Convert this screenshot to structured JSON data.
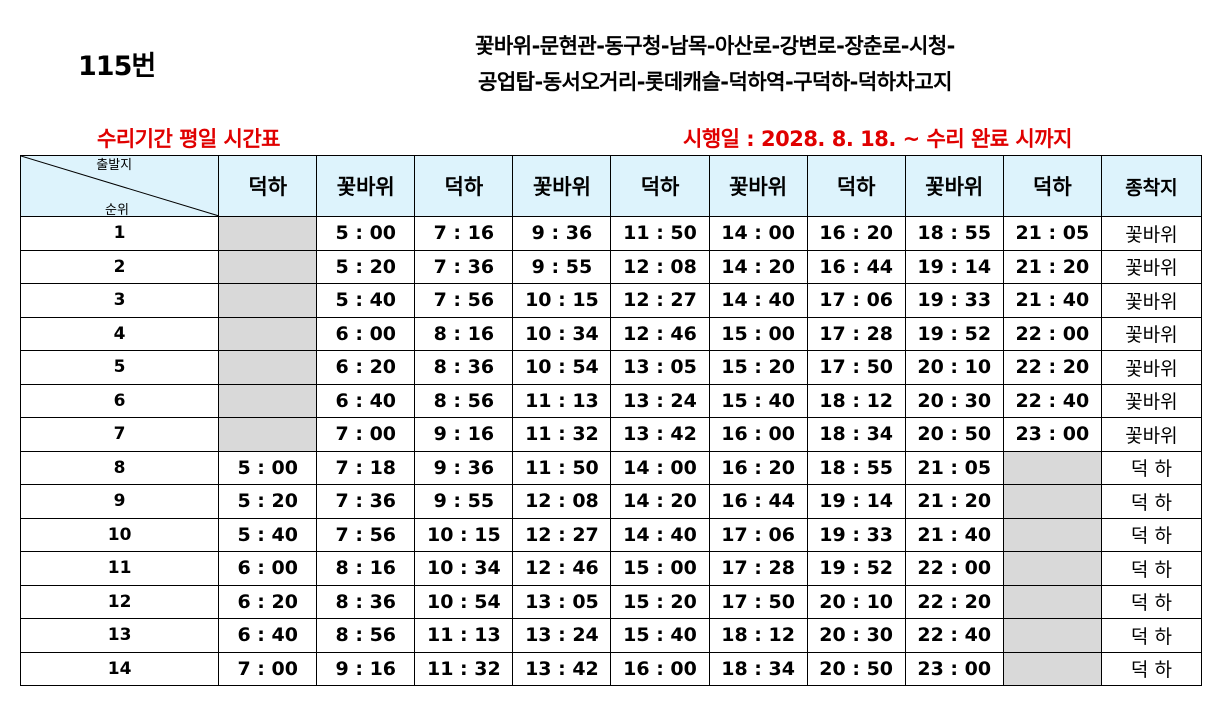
{
  "header": {
    "route_number": "115번",
    "route_line1": "꽃바위-문현관-동구청-남목-아산로-강변로-장춘로-시청-",
    "route_line2": "공업탑-동서오거리-롯데캐슬-덕하역-구덕하-덕하차고지",
    "subtitle_left": "수리기간 평일 시간표",
    "subtitle_right": "시행일 : 2028.  8.  18. ~ 수리 완료 시까지"
  },
  "table": {
    "corner_departure_label": "출발지",
    "corner_sequence_label": "순위",
    "columns": [
      "덕하",
      "꽃바위",
      "덕하",
      "꽃바위",
      "덕하",
      "꽃바위",
      "덕하",
      "꽃바위",
      "덕하"
    ],
    "destination_header": "종착지",
    "rows": [
      {
        "seq": "1",
        "times": [
          "",
          "5 : 00",
          "7 : 16",
          "9 : 36",
          "11 : 50",
          "14 : 00",
          "16 : 20",
          "18 : 55",
          "21 : 05"
        ],
        "dest": "꽃바위"
      },
      {
        "seq": "2",
        "times": [
          "",
          "5 : 20",
          "7 : 36",
          "9 : 55",
          "12 : 08",
          "14 : 20",
          "16 : 44",
          "19 : 14",
          "21 : 20"
        ],
        "dest": "꽃바위"
      },
      {
        "seq": "3",
        "times": [
          "",
          "5 : 40",
          "7 : 56",
          "10 : 15",
          "12 : 27",
          "14 : 40",
          "17 : 06",
          "19 : 33",
          "21 : 40"
        ],
        "dest": "꽃바위"
      },
      {
        "seq": "4",
        "times": [
          "",
          "6 : 00",
          "8 : 16",
          "10 : 34",
          "12 : 46",
          "15 : 00",
          "17 : 28",
          "19 : 52",
          "22 : 00"
        ],
        "dest": "꽃바위"
      },
      {
        "seq": "5",
        "times": [
          "",
          "6 : 20",
          "8 : 36",
          "10 : 54",
          "13 : 05",
          "15 : 20",
          "17 : 50",
          "20 : 10",
          "22 : 20"
        ],
        "dest": "꽃바위"
      },
      {
        "seq": "6",
        "times": [
          "",
          "6 : 40",
          "8 : 56",
          "11 : 13",
          "13 : 24",
          "15 : 40",
          "18 : 12",
          "20 : 30",
          "22 : 40"
        ],
        "dest": "꽃바위"
      },
      {
        "seq": "7",
        "times": [
          "",
          "7 : 00",
          "9 : 16",
          "11 : 32",
          "13 : 42",
          "16 : 00",
          "18 : 34",
          "20 : 50",
          "23 : 00"
        ],
        "dest": "꽃바위"
      },
      {
        "seq": "8",
        "times": [
          "5 : 00",
          "7 : 18",
          "9 : 36",
          "11 : 50",
          "14 : 00",
          "16 : 20",
          "18 : 55",
          "21 : 05",
          ""
        ],
        "dest": "덕 하"
      },
      {
        "seq": "9",
        "times": [
          "5 : 20",
          "7 : 36",
          "9 : 55",
          "12 : 08",
          "14 : 20",
          "16 : 44",
          "19 : 14",
          "21 : 20",
          ""
        ],
        "dest": "덕 하"
      },
      {
        "seq": "10",
        "times": [
          "5 : 40",
          "7 : 56",
          "10 : 15",
          "12 : 27",
          "14 : 40",
          "17 : 06",
          "19 : 33",
          "21 : 40",
          ""
        ],
        "dest": "덕 하"
      },
      {
        "seq": "11",
        "times": [
          "6 : 00",
          "8 : 16",
          "10 : 34",
          "12 : 46",
          "15 : 00",
          "17 : 28",
          "19 : 52",
          "22 : 00",
          ""
        ],
        "dest": "덕 하"
      },
      {
        "seq": "12",
        "times": [
          "6 : 20",
          "8 : 36",
          "10 : 54",
          "13 : 05",
          "15 : 20",
          "17 : 50",
          "20 : 10",
          "22 : 20",
          ""
        ],
        "dest": "덕 하"
      },
      {
        "seq": "13",
        "times": [
          "6 : 40",
          "8 : 56",
          "11 : 13",
          "13 : 24",
          "15 : 40",
          "18 : 12",
          "20 : 30",
          "22 : 40",
          ""
        ],
        "dest": "덕 하"
      },
      {
        "seq": "14",
        "times": [
          "7 : 00",
          "9 : 16",
          "11 : 32",
          "13 : 42",
          "16 : 00",
          "18 : 34",
          "20 : 50",
          "23 : 00",
          ""
        ],
        "dest": "덕 하"
      }
    ]
  },
  "colors": {
    "header_fill": "#ddf3fc",
    "empty_cell_fill": "#d9d9d9",
    "subtitle_text": "#e00000"
  }
}
